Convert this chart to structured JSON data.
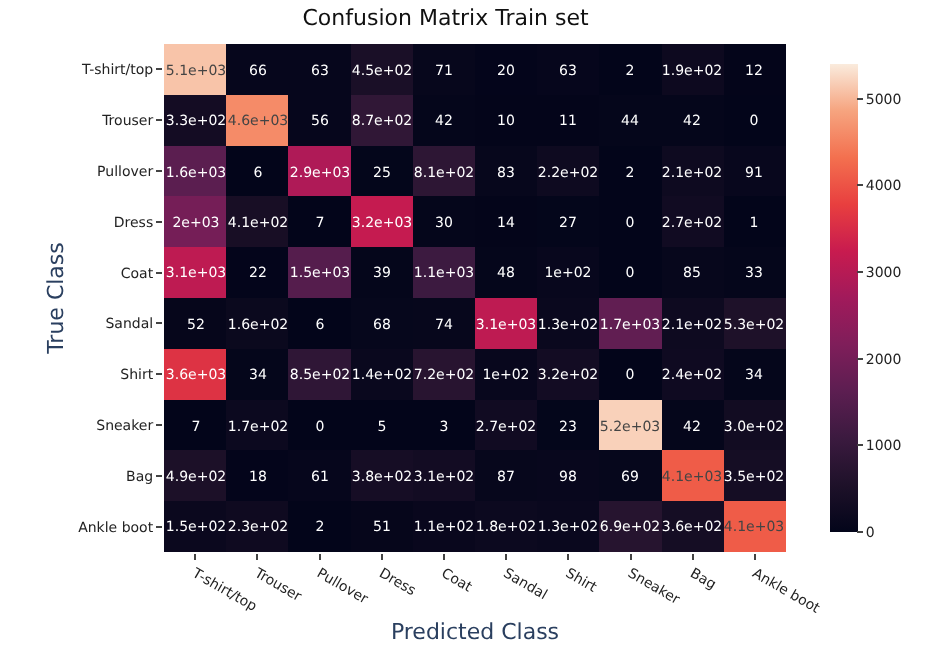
{
  "chart_data": {
    "type": "heatmap",
    "title": "Confusion Matrix Train set",
    "xlabel": "Predicted Class",
    "ylabel": "True Class",
    "categories": [
      "T-shirt/top",
      "Trouser",
      "Pullover",
      "Dress",
      "Coat",
      "Sandal",
      "Shirt",
      "Sneaker",
      "Bag",
      "Ankle boot"
    ],
    "y_categories": [
      "T-shirt/top",
      "Trouser",
      "Pullover",
      "Dress",
      "Coat",
      "Sandal",
      "Shirt",
      "Sneaker",
      "Bag",
      "Ankle boot"
    ],
    "cells": [
      [
        5100,
        66,
        63,
        450,
        71,
        20,
        63,
        2,
        190,
        12
      ],
      [
        330,
        4600,
        56,
        870,
        42,
        10,
        11,
        44,
        42,
        0
      ],
      [
        1600,
        6,
        2900,
        25,
        810,
        83,
        220,
        2,
        210,
        91
      ],
      [
        2000,
        410,
        7,
        3200,
        30,
        14,
        27,
        0,
        270,
        1
      ],
      [
        3100,
        22,
        1500,
        39,
        1100,
        48,
        100,
        0,
        85,
        33
      ],
      [
        52,
        160,
        6,
        68,
        74,
        3100,
        130,
        1700,
        210,
        530
      ],
      [
        3600,
        34,
        850,
        140,
        720,
        100,
        320,
        0,
        240,
        34
      ],
      [
        7,
        170,
        0,
        5,
        3,
        270,
        23,
        5200,
        42,
        300
      ],
      [
        490,
        18,
        61,
        380,
        310,
        87,
        98,
        69,
        4100,
        350
      ],
      [
        150,
        230,
        2,
        51,
        110,
        180,
        130,
        690,
        360,
        4100
      ]
    ],
    "cell_labels": [
      [
        "5.1e+03",
        "66",
        "63",
        "4.5e+02",
        "71",
        "20",
        "63",
        "2",
        "1.9e+02",
        "12"
      ],
      [
        "3.3e+02",
        "4.6e+03",
        "56",
        "8.7e+02",
        "42",
        "10",
        "11",
        "44",
        "42",
        "0"
      ],
      [
        "1.6e+03",
        "6",
        "2.9e+03",
        "25",
        "8.1e+02",
        "83",
        "2.2e+02",
        "2",
        "2.1e+02",
        "91"
      ],
      [
        "2e+03",
        "4.1e+02",
        "7",
        "3.2e+03",
        "30",
        "14",
        "27",
        "0",
        "2.7e+02",
        "1"
      ],
      [
        "3.1e+03",
        "22",
        "1.5e+03",
        "39",
        "1.1e+03",
        "48",
        "1e+02",
        "0",
        "85",
        "33"
      ],
      [
        "52",
        "1.6e+02",
        "6",
        "68",
        "74",
        "3.1e+03",
        "1.3e+02",
        "1.7e+03",
        "2.1e+02",
        "5.3e+02"
      ],
      [
        "3.6e+03",
        "34",
        "8.5e+02",
        "1.4e+02",
        "7.2e+02",
        "1e+02",
        "3.2e+02",
        "0",
        "2.4e+02",
        "34"
      ],
      [
        "7",
        "1.7e+02",
        "0",
        "5",
        "3",
        "2.7e+02",
        "23",
        "5.2e+03",
        "42",
        "3.0e+02"
      ],
      [
        "4.9e+02",
        "18",
        "61",
        "3.8e+02",
        "3.1e+02",
        "87",
        "98",
        "69",
        "4.1e+03",
        "3.5e+02"
      ],
      [
        "1.5e+02",
        "2.3e+02",
        "2",
        "51",
        "1.1e+02",
        "1.8e+02",
        "1.3e+02",
        "6.9e+02",
        "3.6e+02",
        "4.1e+03"
      ]
    ],
    "clim": [
      0,
      5400
    ],
    "cticks": [
      0,
      1000,
      2000,
      3000,
      4000,
      5000
    ]
  }
}
